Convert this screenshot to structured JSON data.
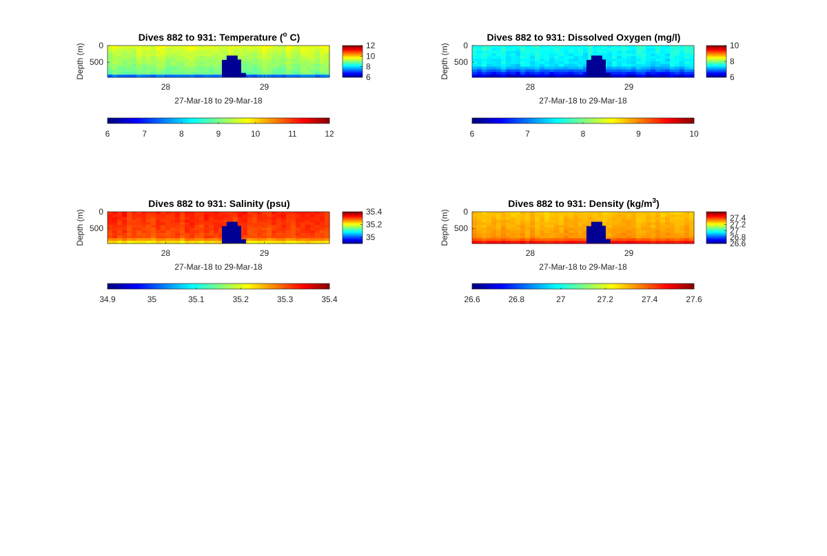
{
  "chart_data": [
    {
      "type": "heatmap",
      "title": "Dives 882 to 931: Temperature (",
      "title_sup": "o",
      "title_suffix": " C)",
      "ylabel": "Depth (m)",
      "xlabel": "27-Mar-18 to 29-Mar-18",
      "yticks": [
        "0",
        "500"
      ],
      "xticks": [
        "28",
        "29"
      ],
      "ylim": [
        0,
        950
      ],
      "xlim": [
        27.41,
        29.66
      ],
      "clim": [
        6,
        12
      ],
      "side_colorbar_ticks": [
        "12",
        "10",
        "8",
        "6"
      ],
      "side_colorbar_values": [
        12,
        10,
        8,
        6
      ],
      "bottom_colorbar_ticks": [
        "6",
        "7",
        "8",
        "9",
        "10",
        "11",
        "12"
      ],
      "field": {
        "surface": 9.6,
        "deep": 8.9,
        "bottom": 6.6,
        "bottom_depth": 840,
        "noise": 0.25
      },
      "gap": {
        "x_start": 28.57,
        "x_end": 28.81,
        "top_depth": 300
      }
    },
    {
      "type": "heatmap",
      "title": "Dives 882 to 931: Dissolved Oxygen (mg/l)",
      "ylabel": "Depth (m)",
      "xlabel": "27-Mar-18 to 29-Mar-18",
      "yticks": [
        "0",
        "500"
      ],
      "xticks": [
        "28",
        "29"
      ],
      "ylim": [
        0,
        950
      ],
      "xlim": [
        27.41,
        29.66
      ],
      "clim": [
        6,
        10
      ],
      "side_colorbar_ticks": [
        "10",
        "8",
        "6"
      ],
      "side_colorbar_values": [
        10,
        8,
        6
      ],
      "bottom_colorbar_ticks": [
        "6",
        "7",
        "8",
        "9",
        "10"
      ],
      "field": {
        "surface": 7.6,
        "deep": 7.4,
        "bottom": 6.2,
        "bottom_depth": 620,
        "noise": 0.22
      },
      "gap": {
        "x_start": 28.57,
        "x_end": 28.81,
        "top_depth": 300
      }
    },
    {
      "type": "heatmap",
      "title": "Dives 882 to 931: Salinity (psu)",
      "ylabel": "Depth (m)",
      "xlabel": "27-Mar-18 to 29-Mar-18",
      "yticks": [
        "0",
        "500"
      ],
      "xticks": [
        "28",
        "29"
      ],
      "ylim": [
        0,
        950
      ],
      "xlim": [
        27.41,
        29.66
      ],
      "clim": [
        34.9,
        35.4
      ],
      "side_colorbar_ticks": [
        "35.4",
        "35.2",
        "35"
      ],
      "side_colorbar_values": [
        35.4,
        35.2,
        35
      ],
      "bottom_colorbar_ticks": [
        "34.9",
        "35",
        "35.1",
        "35.2",
        "35.3",
        "35.4"
      ],
      "field": {
        "surface": 35.32,
        "deep": 35.3,
        "bottom": 35.2,
        "bottom_depth": 780,
        "noise": 0.02
      },
      "gap": {
        "x_start": 28.57,
        "x_end": 28.81,
        "top_depth": 300
      }
    },
    {
      "type": "heatmap",
      "title": "Dives 882 to 931: Density (kg/m",
      "title_sup": "3",
      "title_suffix": ")",
      "ylabel": "Depth (m)",
      "xlabel": "27-Mar-18 to 29-Mar-18",
      "yticks": [
        "0",
        "500"
      ],
      "xticks": [
        "28",
        "29"
      ],
      "ylim": [
        0,
        950
      ],
      "xlim": [
        27.41,
        29.66
      ],
      "clim": [
        26.6,
        27.6
      ],
      "side_colorbar_ticks": [
        "27.4",
        "27.2",
        "27",
        "26.8",
        "26.6"
      ],
      "side_colorbar_values": [
        27.4,
        27.2,
        27,
        26.8,
        26.6
      ],
      "bottom_colorbar_ticks": [
        "26.6",
        "26.8",
        "27",
        "27.2",
        "27.4",
        "27.6"
      ],
      "field": {
        "surface": 27.28,
        "deep": 27.33,
        "bottom": 27.5,
        "bottom_depth": 780,
        "noise": 0.03
      },
      "gap": {
        "x_start": 28.57,
        "x_end": 28.81,
        "top_depth": 300
      }
    }
  ]
}
